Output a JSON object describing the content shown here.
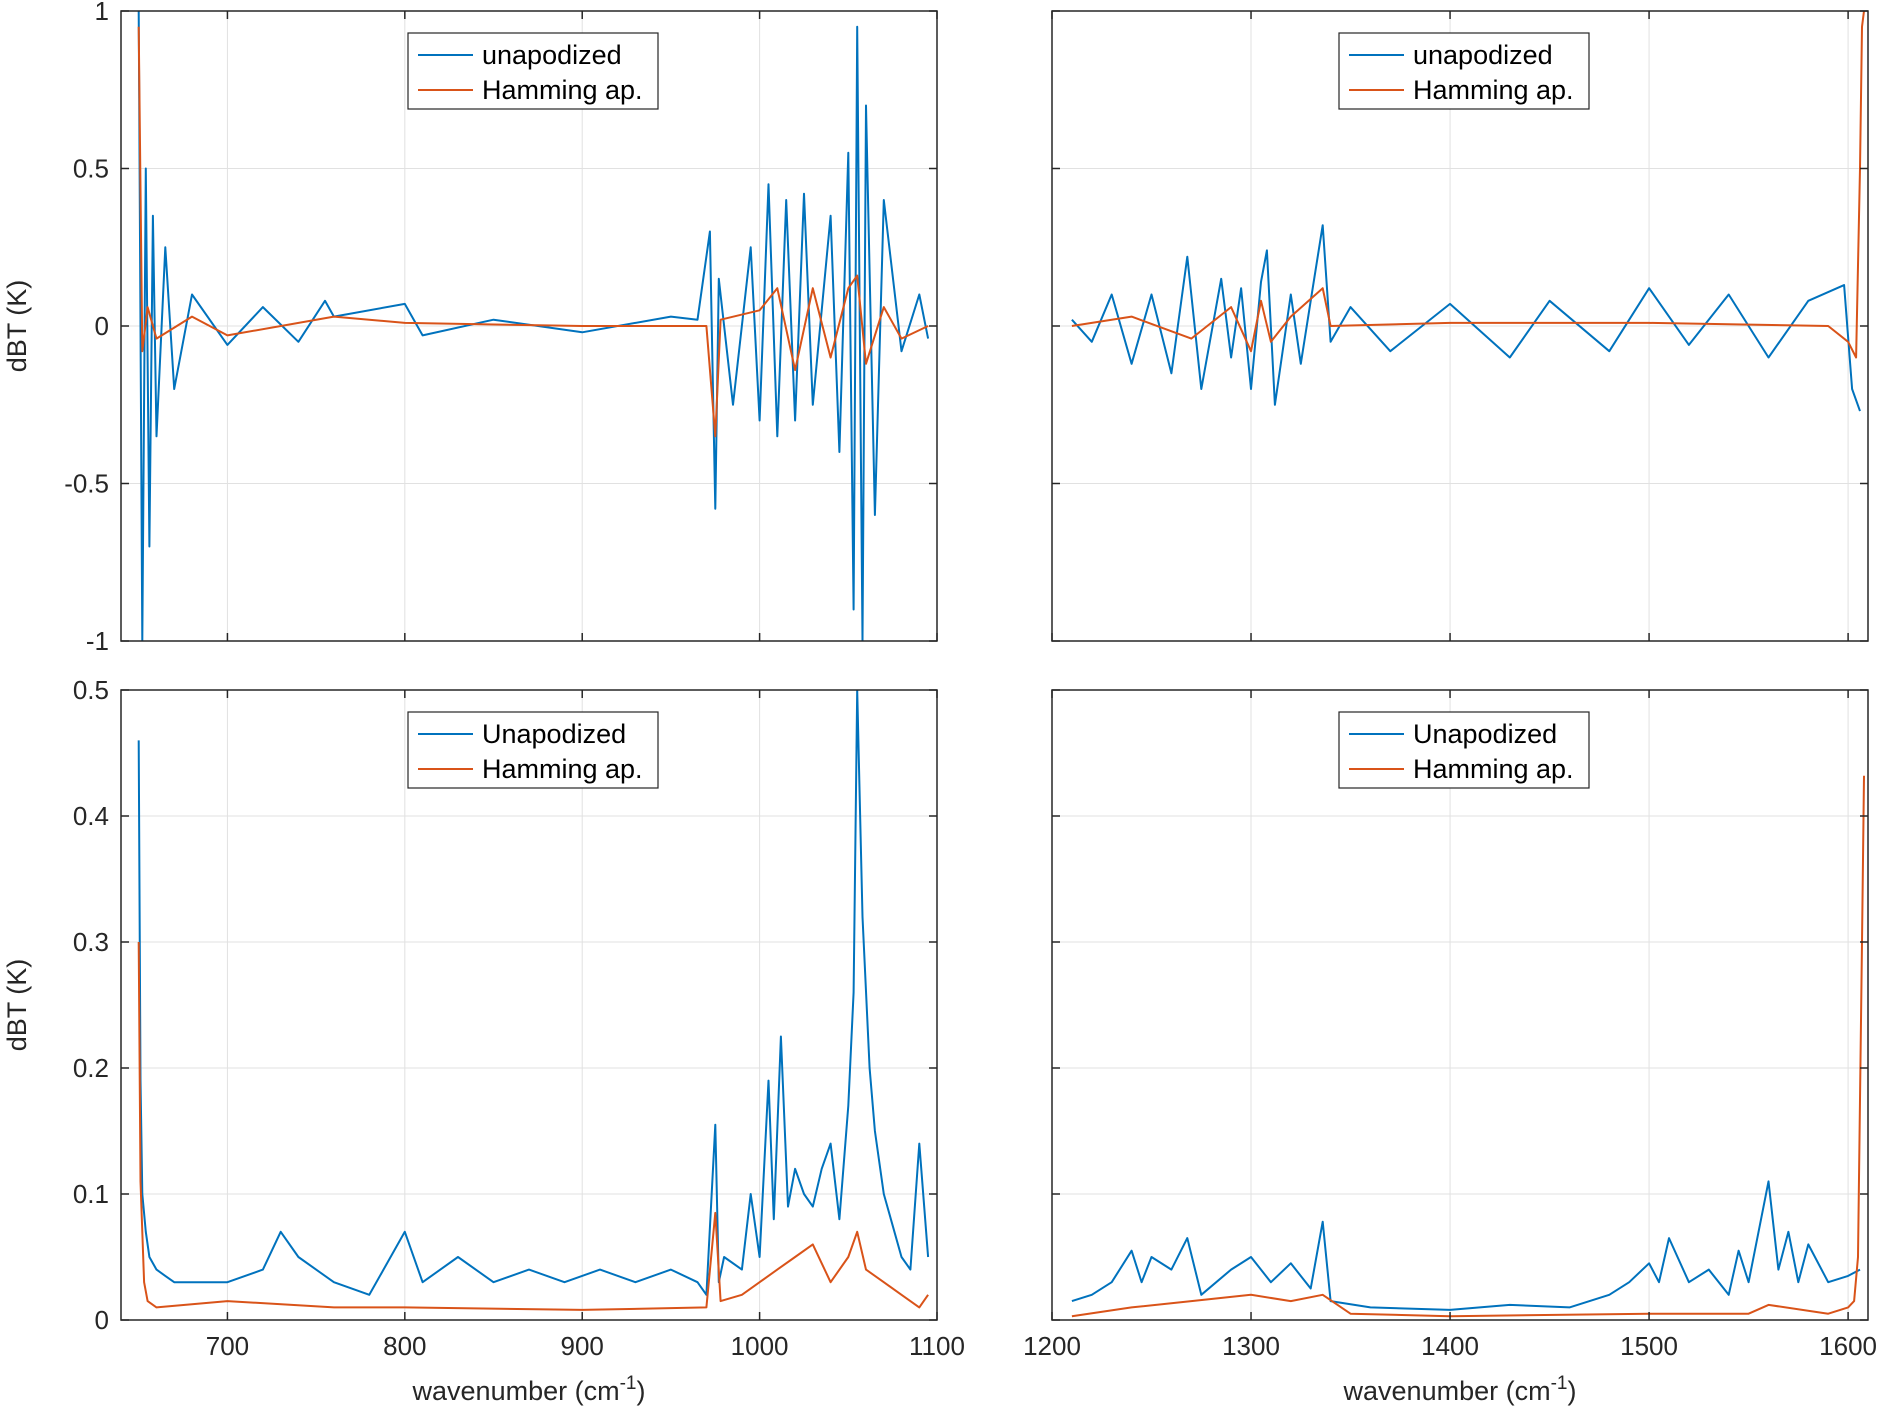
{
  "figure": {
    "colors": {
      "unapodized": "#0072BD",
      "hamming": "#D95319",
      "grid": "#E1E1E1",
      "axis": "#262626"
    }
  },
  "chart_data": [
    {
      "id": "top-left",
      "type": "line",
      "xlim": [
        640,
        1100
      ],
      "ylim": [
        -1,
        1
      ],
      "xticks": [
        700,
        800,
        900,
        1000,
        1100
      ],
      "yticks": [
        -1,
        -0.5,
        0,
        0.5,
        1
      ],
      "ytick_labels": [
        "-1",
        "-0.5",
        "0",
        "0.5",
        "1"
      ],
      "show_xtick_labels": false,
      "show_ytick_labels": true,
      "xlabel": "",
      "ylabel": "dBT (K)",
      "grid": true,
      "legend": {
        "position": "top-center",
        "entries": [
          "unapodized",
          "Hamming ap."
        ]
      },
      "series": [
        {
          "name": "unapodized",
          "color": "#0072BD",
          "x": [
            650,
            652,
            654,
            656,
            658,
            660,
            665,
            670,
            680,
            700,
            720,
            740,
            755,
            760,
            800,
            810,
            850,
            900,
            950,
            965,
            972,
            975,
            977,
            985,
            995,
            1000,
            1005,
            1010,
            1015,
            1020,
            1025,
            1030,
            1040,
            1045,
            1050,
            1053,
            1055,
            1058,
            1060,
            1065,
            1070,
            1080,
            1090,
            1095
          ],
          "y": [
            1.0,
            -1.0,
            0.5,
            -0.7,
            0.35,
            -0.35,
            0.25,
            -0.2,
            0.1,
            -0.06,
            0.06,
            -0.05,
            0.08,
            0.03,
            0.07,
            -0.03,
            0.02,
            -0.02,
            0.03,
            0.02,
            0.3,
            -0.58,
            0.15,
            -0.25,
            0.25,
            -0.3,
            0.45,
            -0.35,
            0.4,
            -0.3,
            0.42,
            -0.25,
            0.35,
            -0.4,
            0.55,
            -0.9,
            0.95,
            -1.0,
            0.7,
            -0.6,
            0.4,
            -0.08,
            0.1,
            -0.04
          ]
        },
        {
          "name": "Hamming ap.",
          "color": "#D95319",
          "x": [
            650,
            652,
            655,
            660,
            680,
            700,
            760,
            800,
            900,
            970,
            975,
            978,
            1000,
            1010,
            1020,
            1030,
            1040,
            1050,
            1055,
            1060,
            1070,
            1080,
            1095
          ],
          "y": [
            0.95,
            -0.08,
            0.06,
            -0.04,
            0.03,
            -0.03,
            0.03,
            0.01,
            0.0,
            0.0,
            -0.35,
            0.02,
            0.05,
            0.12,
            -0.14,
            0.12,
            -0.1,
            0.12,
            0.16,
            -0.12,
            0.06,
            -0.04,
            0.0
          ]
        }
      ]
    },
    {
      "id": "top-right",
      "type": "line",
      "xlim": [
        1200,
        1610
      ],
      "ylim": [
        -1,
        1
      ],
      "xticks": [
        1200,
        1300,
        1400,
        1500,
        1600
      ],
      "yticks": [
        -1,
        -0.5,
        0,
        0.5,
        1
      ],
      "show_xtick_labels": false,
      "show_ytick_labels": false,
      "xlabel": "",
      "ylabel": "",
      "grid": true,
      "legend": {
        "position": "top-center",
        "entries": [
          "unapodized",
          "Hamming ap."
        ]
      },
      "series": [
        {
          "name": "unapodized",
          "color": "#0072BD",
          "x": [
            1210,
            1220,
            1230,
            1240,
            1250,
            1260,
            1268,
            1275,
            1285,
            1290,
            1295,
            1300,
            1305,
            1308,
            1312,
            1320,
            1325,
            1330,
            1336,
            1340,
            1350,
            1370,
            1400,
            1430,
            1450,
            1480,
            1500,
            1520,
            1540,
            1560,
            1580,
            1598,
            1602,
            1606
          ],
          "y": [
            0.02,
            -0.05,
            0.1,
            -0.12,
            0.1,
            -0.15,
            0.22,
            -0.2,
            0.15,
            -0.1,
            0.12,
            -0.2,
            0.14,
            0.24,
            -0.25,
            0.1,
            -0.12,
            0.08,
            0.32,
            -0.05,
            0.06,
            -0.08,
            0.07,
            -0.1,
            0.08,
            -0.08,
            0.12,
            -0.06,
            0.1,
            -0.1,
            0.08,
            0.13,
            -0.2,
            -0.27
          ]
        },
        {
          "name": "Hamming ap.",
          "color": "#D95319",
          "x": [
            1210,
            1240,
            1270,
            1290,
            1300,
            1305,
            1310,
            1320,
            1336,
            1340,
            1400,
            1500,
            1590,
            1600,
            1604,
            1606,
            1607,
            1608
          ],
          "y": [
            0.0,
            0.03,
            -0.04,
            0.06,
            -0.08,
            0.08,
            -0.05,
            0.03,
            0.12,
            0.0,
            0.01,
            0.01,
            0.0,
            -0.05,
            -0.1,
            0.5,
            0.95,
            1.0
          ]
        }
      ]
    },
    {
      "id": "bottom-left",
      "type": "line",
      "xlim": [
        640,
        1100
      ],
      "ylim": [
        0,
        0.5
      ],
      "xticks": [
        700,
        800,
        900,
        1000,
        1100
      ],
      "yticks": [
        0,
        0.1,
        0.2,
        0.3,
        0.4,
        0.5
      ],
      "ytick_labels": [
        "0",
        "0.1",
        "0.2",
        "0.3",
        "0.4",
        "0.5"
      ],
      "xtick_labels": [
        "700",
        "800",
        "900",
        "1000",
        "1100"
      ],
      "show_xtick_labels": true,
      "show_ytick_labels": true,
      "xlabel": "wavenumber (cm",
      "xlabel_sup": "-1",
      "xlabel_suffix": ")",
      "ylabel": "dBT (K)",
      "grid": true,
      "legend": {
        "position": "top-center",
        "entries": [
          "Unapodized",
          "Hamming ap."
        ]
      },
      "series": [
        {
          "name": "Unapodized",
          "color": "#0072BD",
          "x": [
            650,
            651,
            652,
            654,
            656,
            660,
            665,
            670,
            680,
            700,
            720,
            730,
            740,
            750,
            760,
            780,
            800,
            810,
            830,
            850,
            870,
            890,
            910,
            930,
            950,
            965,
            970,
            975,
            977,
            980,
            990,
            995,
            1000,
            1005,
            1008,
            1012,
            1016,
            1020,
            1025,
            1030,
            1035,
            1040,
            1045,
            1050,
            1053,
            1055,
            1058,
            1062,
            1065,
            1070,
            1080,
            1085,
            1090,
            1095
          ],
          "y": [
            0.46,
            0.19,
            0.1,
            0.07,
            0.05,
            0.04,
            0.035,
            0.03,
            0.03,
            0.03,
            0.04,
            0.07,
            0.05,
            0.04,
            0.03,
            0.02,
            0.07,
            0.03,
            0.05,
            0.03,
            0.04,
            0.03,
            0.04,
            0.03,
            0.04,
            0.03,
            0.02,
            0.155,
            0.03,
            0.05,
            0.04,
            0.1,
            0.05,
            0.19,
            0.08,
            0.225,
            0.09,
            0.12,
            0.1,
            0.09,
            0.12,
            0.14,
            0.08,
            0.17,
            0.26,
            0.5,
            0.32,
            0.2,
            0.15,
            0.1,
            0.05,
            0.04,
            0.14,
            0.05
          ]
        },
        {
          "name": "Hamming ap.",
          "color": "#D95319",
          "x": [
            650,
            651,
            653,
            655,
            660,
            700,
            760,
            800,
            900,
            970,
            975,
            978,
            990,
            1000,
            1010,
            1020,
            1030,
            1040,
            1050,
            1055,
            1060,
            1070,
            1080,
            1090,
            1095
          ],
          "y": [
            0.3,
            0.11,
            0.03,
            0.015,
            0.01,
            0.015,
            0.01,
            0.01,
            0.008,
            0.01,
            0.085,
            0.015,
            0.02,
            0.03,
            0.04,
            0.05,
            0.06,
            0.03,
            0.05,
            0.07,
            0.04,
            0.03,
            0.02,
            0.01,
            0.02
          ]
        }
      ]
    },
    {
      "id": "bottom-right",
      "type": "line",
      "xlim": [
        1200,
        1610
      ],
      "ylim": [
        0,
        0.5
      ],
      "xticks": [
        1200,
        1300,
        1400,
        1500,
        1600
      ],
      "yticks": [
        0,
        0.1,
        0.2,
        0.3,
        0.4,
        0.5
      ],
      "xtick_labels": [
        "1200",
        "1300",
        "1400",
        "1500",
        "1600"
      ],
      "show_xtick_labels": true,
      "show_ytick_labels": false,
      "xlabel": "wavenumber (cm",
      "xlabel_sup": "-1",
      "xlabel_suffix": ")",
      "ylabel": "",
      "grid": true,
      "legend": {
        "position": "top-center",
        "entries": [
          "Unapodized",
          "Hamming ap."
        ]
      },
      "series": [
        {
          "name": "Unapodized",
          "color": "#0072BD",
          "x": [
            1210,
            1220,
            1230,
            1240,
            1245,
            1250,
            1260,
            1268,
            1275,
            1290,
            1300,
            1310,
            1320,
            1330,
            1336,
            1340,
            1360,
            1400,
            1430,
            1460,
            1480,
            1490,
            1500,
            1505,
            1510,
            1520,
            1530,
            1540,
            1545,
            1550,
            1560,
            1565,
            1570,
            1575,
            1580,
            1590,
            1600,
            1606
          ],
          "y": [
            0.015,
            0.02,
            0.03,
            0.055,
            0.03,
            0.05,
            0.04,
            0.065,
            0.02,
            0.04,
            0.05,
            0.03,
            0.045,
            0.025,
            0.078,
            0.015,
            0.01,
            0.008,
            0.012,
            0.01,
            0.02,
            0.03,
            0.045,
            0.03,
            0.065,
            0.03,
            0.04,
            0.02,
            0.055,
            0.03,
            0.11,
            0.04,
            0.07,
            0.03,
            0.06,
            0.03,
            0.035,
            0.04
          ]
        },
        {
          "name": "Hamming ap.",
          "color": "#D95319",
          "x": [
            1210,
            1240,
            1270,
            1300,
            1320,
            1336,
            1350,
            1400,
            1500,
            1550,
            1560,
            1590,
            1600,
            1603,
            1605,
            1607,
            1608
          ],
          "y": [
            0.003,
            0.01,
            0.015,
            0.02,
            0.015,
            0.02,
            0.005,
            0.003,
            0.005,
            0.005,
            0.012,
            0.005,
            0.01,
            0.015,
            0.05,
            0.3,
            0.432
          ]
        }
      ]
    }
  ]
}
